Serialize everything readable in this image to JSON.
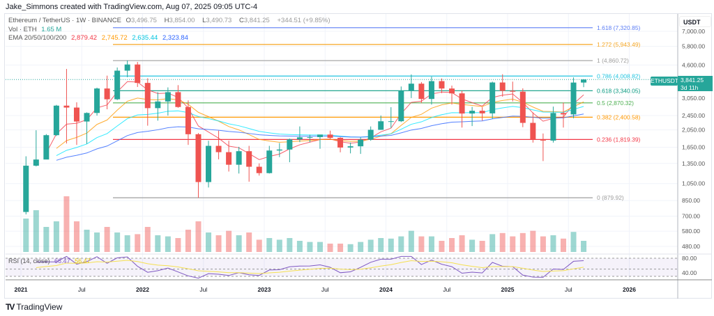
{
  "credit": "Jake_Simmons created with TradingView.com, Aug 07, 2025 09:05 UTC-4",
  "legend": {
    "symbol": "Ethereum / TetherUS · 1W · BINANCE",
    "o_label": "O",
    "o": "3,496.75",
    "h_label": "H",
    "h": "3,854.00",
    "l_label": "L",
    "l": "3,490.73",
    "c_label": "C",
    "c": "3,841.25",
    "change": "+344.51 (+9.85%)",
    "vol_label": "Vol · ETH",
    "vol": "1.65 M",
    "ema_label": "EMA 20/50/100/200",
    "ema": [
      {
        "value": "2,879.42",
        "color": "#f23645"
      },
      {
        "value": "2,745.72",
        "color": "#ff9800"
      },
      {
        "value": "2,635.44",
        "color": "#00e5ff"
      },
      {
        "value": "2,323.84",
        "color": "#2962ff"
      }
    ]
  },
  "rsi_label": "RSI (14, close)",
  "rsi_value": "66.47",
  "rsi_ma": "56.47",
  "currency": "USDT",
  "ticker_badge": "ETHUSDT",
  "last_price": "3,841.25",
  "countdown": "3d 11h",
  "brand": "TradingView",
  "colors": {
    "up": "#26a69a",
    "down": "#ef5350"
  },
  "chart_data": {
    "type": "candlestick",
    "scale": "log",
    "ylim": [
      400,
      8500
    ],
    "grid": true,
    "price_ticks": [
      "7,000.00",
      "5,800.00",
      "4,600.00",
      "3,050.00",
      "2,450.00",
      "2,050.00",
      "1,650.00",
      "1,350.00",
      "1,050.00",
      "850.00",
      "700.00",
      "580.00",
      "480.00"
    ],
    "price_tick_values": [
      7000,
      5800,
      4600,
      3050,
      2450,
      2050,
      1650,
      1350,
      1050,
      850,
      700,
      580,
      480
    ],
    "rsi_ticks": [
      "80.00",
      "40.00"
    ],
    "time_ticks": [
      {
        "label": "2021",
        "t": 2021.0
      },
      {
        "label": "Jul",
        "t": 2021.5
      },
      {
        "label": "2022",
        "t": 2022.0
      },
      {
        "label": "Jul",
        "t": 2022.5
      },
      {
        "label": "2023",
        "t": 2023.0
      },
      {
        "label": "Jul",
        "t": 2023.5
      },
      {
        "label": "2024",
        "t": 2024.0
      },
      {
        "label": "Jul",
        "t": 2024.5
      },
      {
        "label": "2025",
        "t": 2025.0
      },
      {
        "label": "Jul",
        "t": 2025.5
      },
      {
        "label": "2026",
        "t": 2026.0
      }
    ],
    "fib_levels": [
      {
        "label": "1.618 (7,320.85)",
        "price": 7320.85,
        "color": "#5b7df5"
      },
      {
        "label": "1.272 (5,943.49)",
        "price": 5943.49,
        "color": "#f5a623"
      },
      {
        "label": "1 (4,860.72)",
        "price": 4860.72,
        "color": "#9e9e9e"
      },
      {
        "label": "0.786 (4,008.82)",
        "price": 4008.82,
        "color": "#22c5e0"
      },
      {
        "label": "0.618 (3,340.05)",
        "price": 3340.05,
        "color": "#089981"
      },
      {
        "label": "0.5 (2,870.32)",
        "price": 2870.32,
        "color": "#4caf50"
      },
      {
        "label": "0.382 (2,400.58)",
        "price": 2400.58,
        "color": "#ff9800"
      },
      {
        "label": "0.236 (1,819.39)",
        "price": 1819.39,
        "color": "#f23645"
      },
      {
        "label": "0 (879.92)",
        "price": 879.92,
        "color": "#9e9e9e"
      }
    ],
    "candles_monthly_ohlc": [
      [
        737,
        1475,
        715,
        1312
      ],
      [
        1312,
        2040,
        1300,
        1417
      ],
      [
        1417,
        1945,
        1420,
        1919
      ],
      [
        1919,
        2800,
        1900,
        2773
      ],
      [
        2773,
        4380,
        1730,
        2707
      ],
      [
        2707,
        2890,
        1700,
        2275
      ],
      [
        2275,
        2550,
        1720,
        2531
      ],
      [
        2531,
        3470,
        2450,
        3433
      ],
      [
        3433,
        4030,
        2650,
        3001
      ],
      [
        3001,
        4460,
        2970,
        4288
      ],
      [
        4288,
        4870,
        3950,
        4630
      ],
      [
        4630,
        4780,
        3500,
        3680
      ],
      [
        3680,
        3900,
        2160,
        2688
      ],
      [
        2688,
        3280,
        2300,
        2920
      ],
      [
        2920,
        3480,
        2450,
        3280
      ],
      [
        3280,
        3580,
        2700,
        2726
      ],
      [
        2726,
        2960,
        1700,
        1942
      ],
      [
        1942,
        1970,
        880,
        1070
      ],
      [
        1070,
        1790,
        1000,
        1680
      ],
      [
        1680,
        2030,
        1420,
        1553
      ],
      [
        1553,
        1790,
        1220,
        1328
      ],
      [
        1328,
        1660,
        1190,
        1572
      ],
      [
        1572,
        1680,
        1075,
        1295
      ],
      [
        1295,
        1350,
        1160,
        1196
      ],
      [
        1196,
        1680,
        1190,
        1585
      ],
      [
        1585,
        1740,
        1460,
        1605
      ],
      [
        1605,
        1840,
        1370,
        1821
      ],
      [
        1821,
        2140,
        1760,
        1869
      ],
      [
        1869,
        1930,
        1760,
        1874
      ],
      [
        1874,
        1930,
        1620,
        1934
      ],
      [
        1934,
        2030,
        1840,
        1857
      ],
      [
        1857,
        1870,
        1550,
        1645
      ],
      [
        1645,
        1750,
        1530,
        1671
      ],
      [
        1671,
        1870,
        1520,
        1814
      ],
      [
        1814,
        2140,
        1790,
        2052
      ],
      [
        2052,
        2450,
        2050,
        2282
      ],
      [
        2282,
        2720,
        2100,
        2283
      ],
      [
        2283,
        3520,
        2260,
        3340
      ],
      [
        3340,
        4090,
        3050,
        3646
      ],
      [
        3646,
        3720,
        2860,
        3014
      ],
      [
        3014,
        3980,
        2810,
        3763
      ],
      [
        3763,
        3890,
        3240,
        3432
      ],
      [
        3432,
        3560,
        2810,
        3231
      ],
      [
        3231,
        3340,
        2110,
        2513
      ],
      [
        2513,
        2730,
        2150,
        2602
      ],
      [
        2602,
        2720,
        2300,
        2518
      ],
      [
        2518,
        3740,
        2350,
        3700
      ],
      [
        3700,
        4100,
        3100,
        3335
      ],
      [
        3335,
        3740,
        2920,
        3300
      ],
      [
        3300,
        3440,
        2120,
        2237
      ],
      [
        2237,
        2550,
        1750,
        1822
      ],
      [
        1822,
        1960,
        1390,
        1794
      ],
      [
        1794,
        2740,
        1750,
        2530
      ],
      [
        2530,
        2880,
        2110,
        2486
      ],
      [
        2486,
        3940,
        2370,
        3697
      ],
      [
        3697,
        3854,
        3490,
        3841
      ]
    ],
    "start": "2021-01",
    "volume_relative": [
      60,
      75,
      45,
      55,
      100,
      55,
      40,
      35,
      45,
      35,
      30,
      32,
      45,
      30,
      28,
      25,
      40,
      55,
      35,
      30,
      38,
      30,
      35,
      22,
      25,
      22,
      25,
      20,
      18,
      18,
      15,
      15,
      14,
      18,
      22,
      25,
      24,
      28,
      38,
      28,
      28,
      20,
      25,
      30,
      22,
      20,
      32,
      34,
      28,
      34,
      38,
      28,
      30,
      24,
      36,
      20
    ]
  }
}
